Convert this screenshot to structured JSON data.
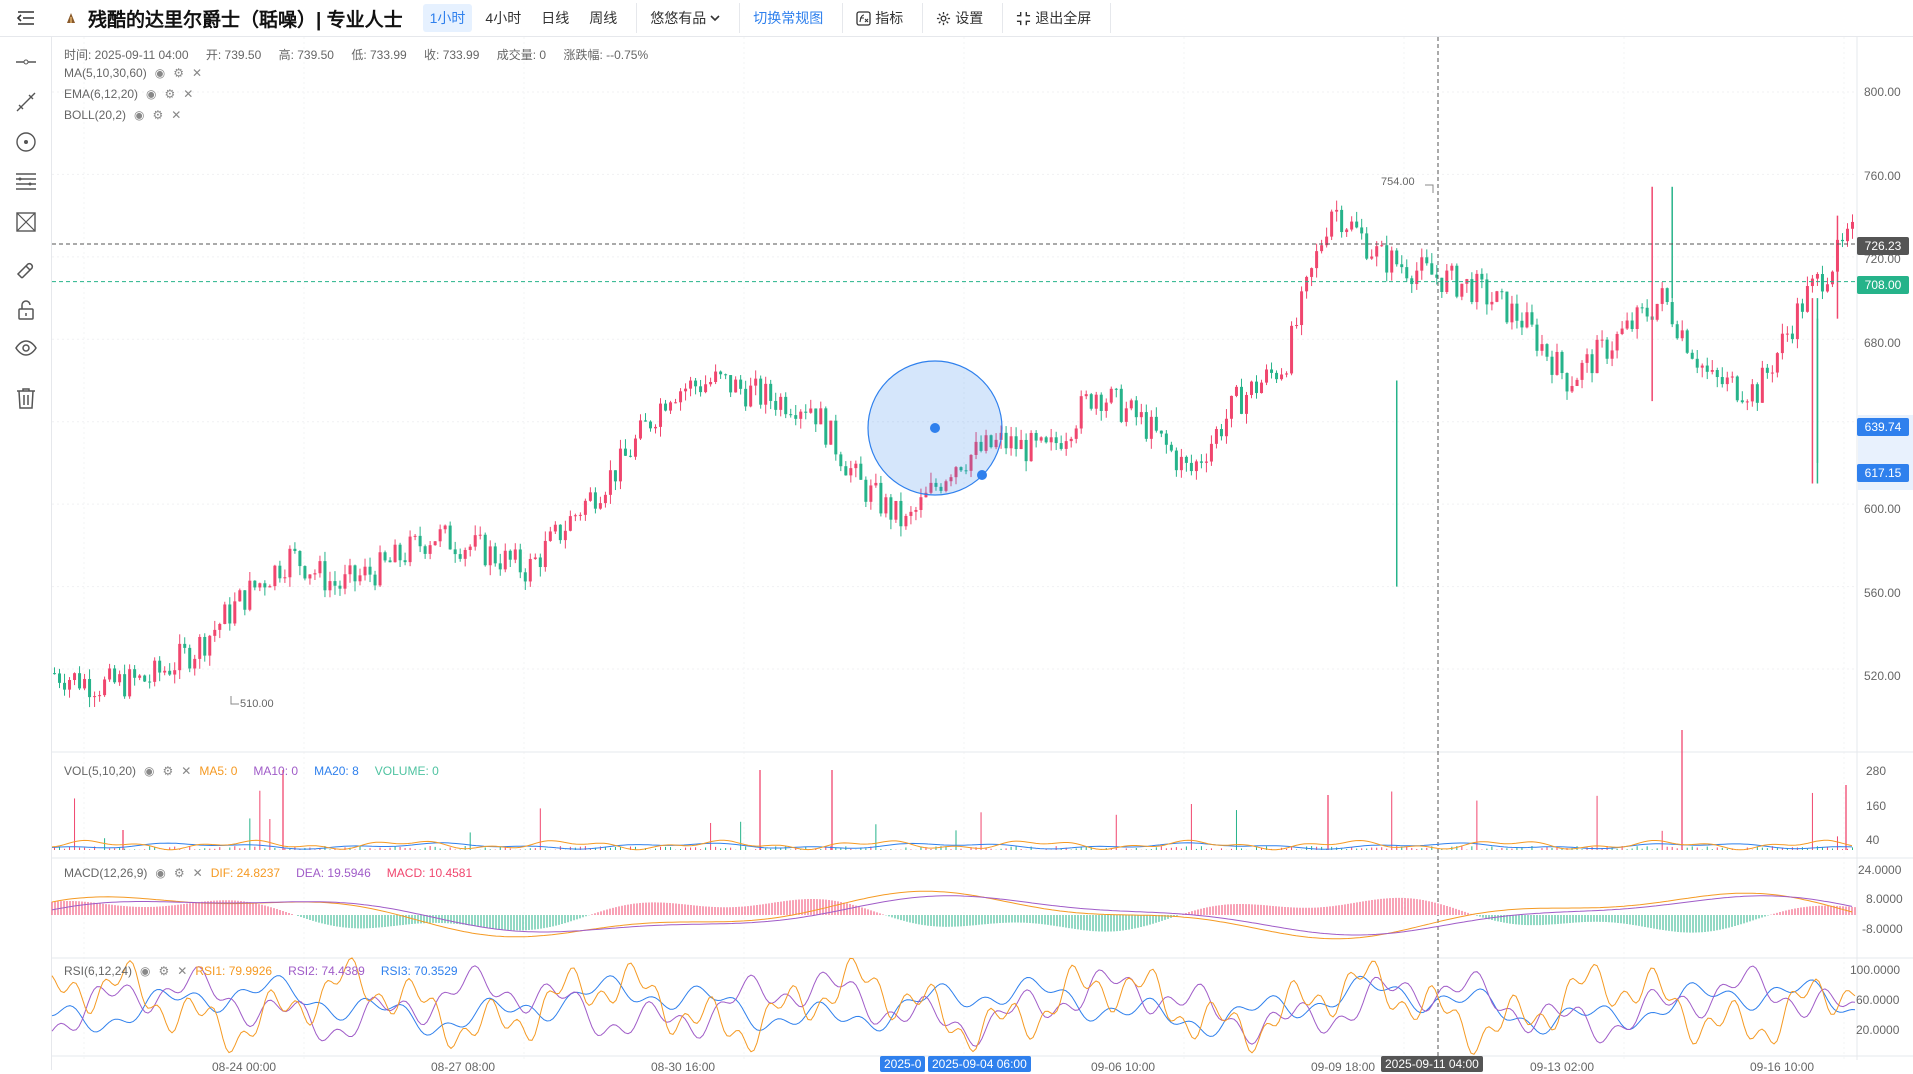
{
  "toolbar": {
    "title": "残酷的达里尔爵士（聒噪）| 专业人士",
    "periods": [
      "1小时",
      "4小时",
      "日线",
      "周线"
    ],
    "active_period": "1小时",
    "platform": "悠悠有品",
    "switch_label": "切换常规图",
    "indicators_label": "指标",
    "settings_label": "设置",
    "exit_fullscreen_label": "退出全屏"
  },
  "sidebar_icons": [
    "horizontal-line-icon",
    "trend-line-icon",
    "circle-draw-icon",
    "fib-lines-icon",
    "shape-draw-icon",
    "magnet-icon",
    "lock-icon",
    "eye-icon",
    "trash-icon"
  ],
  "ohlc": {
    "time": "时间: 2025-09-11 04:00",
    "open": "开: 739.50",
    "high": "高: 739.50",
    "low": "低: 733.99",
    "close": "收: 733.99",
    "volume": "成交量: 0",
    "change": "涨跌幅: --0.75%"
  },
  "overlays": [
    "MA(5,10,30,60)",
    "EMA(6,12,20)",
    "BOLL(20,2)"
  ],
  "price_axis": [
    "800.00",
    "760.00",
    "720.00",
    "680.00",
    "600.00",
    "560.00",
    "520.00"
  ],
  "price_tags": {
    "crosshair": "726.23",
    "last": "708.00",
    "circle_top": "639.74",
    "circle_bottom": "617.15"
  },
  "annotations": {
    "high": "754.00",
    "low": "510.00"
  },
  "vol": {
    "label": "VOL(5,10,20)",
    "ma5": "MA5: 0",
    "ma10": "MA10: 0",
    "ma20": "MA20: 8",
    "volume": "VOLUME: 0",
    "axis": [
      "280",
      "160",
      "40"
    ]
  },
  "macd": {
    "label": "MACD(12,26,9)",
    "dif": "DIF: 24.8237",
    "dea": "DEA: 19.5946",
    "macd": "MACD: 10.4581",
    "axis": [
      "24.0000",
      "8.0000",
      "-8.0000"
    ]
  },
  "rsi": {
    "label": "RSI(6,12,24)",
    "rsi1": "RSI1: 79.9926",
    "rsi2": "RSI2: 74.4389",
    "rsi3": "RSI3: 70.3529",
    "axis": [
      "100.0000",
      "60.0000",
      "20.0000"
    ]
  },
  "x_axis": [
    "08-24 00:00",
    "08-27 08:00",
    "08-30 16:00",
    "09-06 10:00",
    "09-09 18:00",
    "09-13 02:00",
    "09-16 10:00"
  ],
  "x_tags": {
    "left": "2025-09-04 06:00",
    "left_clipped": "2025-0",
    "crosshair": "2025-09-11 04:00"
  },
  "colors": {
    "up": "#f0466e",
    "down": "#26b38a",
    "accent": "#2f80ed",
    "ma5": "#f59a23",
    "ma10": "#a05cc8",
    "ma20": "#2f80ed",
    "volume": "#4fc3a1"
  },
  "chart_data": {
    "type": "candlestick",
    "x_ticks": [
      "08-24 00:00",
      "08-27 08:00",
      "08-30 16:00",
      "09-06 10:00",
      "09-09 18:00",
      "09-13 02:00",
      "09-16 10:00"
    ],
    "y_ticks": [
      520,
      560,
      600,
      640,
      680,
      720,
      760,
      800
    ],
    "series_shape": [
      518,
      512,
      515,
      530,
      555,
      575,
      560,
      570,
      585,
      578,
      568,
      595,
      620,
      655,
      660,
      652,
      648,
      610,
      590,
      620,
      630,
      625,
      655,
      640,
      615,
      650,
      668,
      745,
      720,
      712,
      705,
      690,
      660,
      680,
      700,
      660,
      655,
      700,
      730
    ],
    "annotated_high": 754,
    "annotated_low": 510,
    "last_price": 708,
    "crosshair_price": 726.23
  }
}
